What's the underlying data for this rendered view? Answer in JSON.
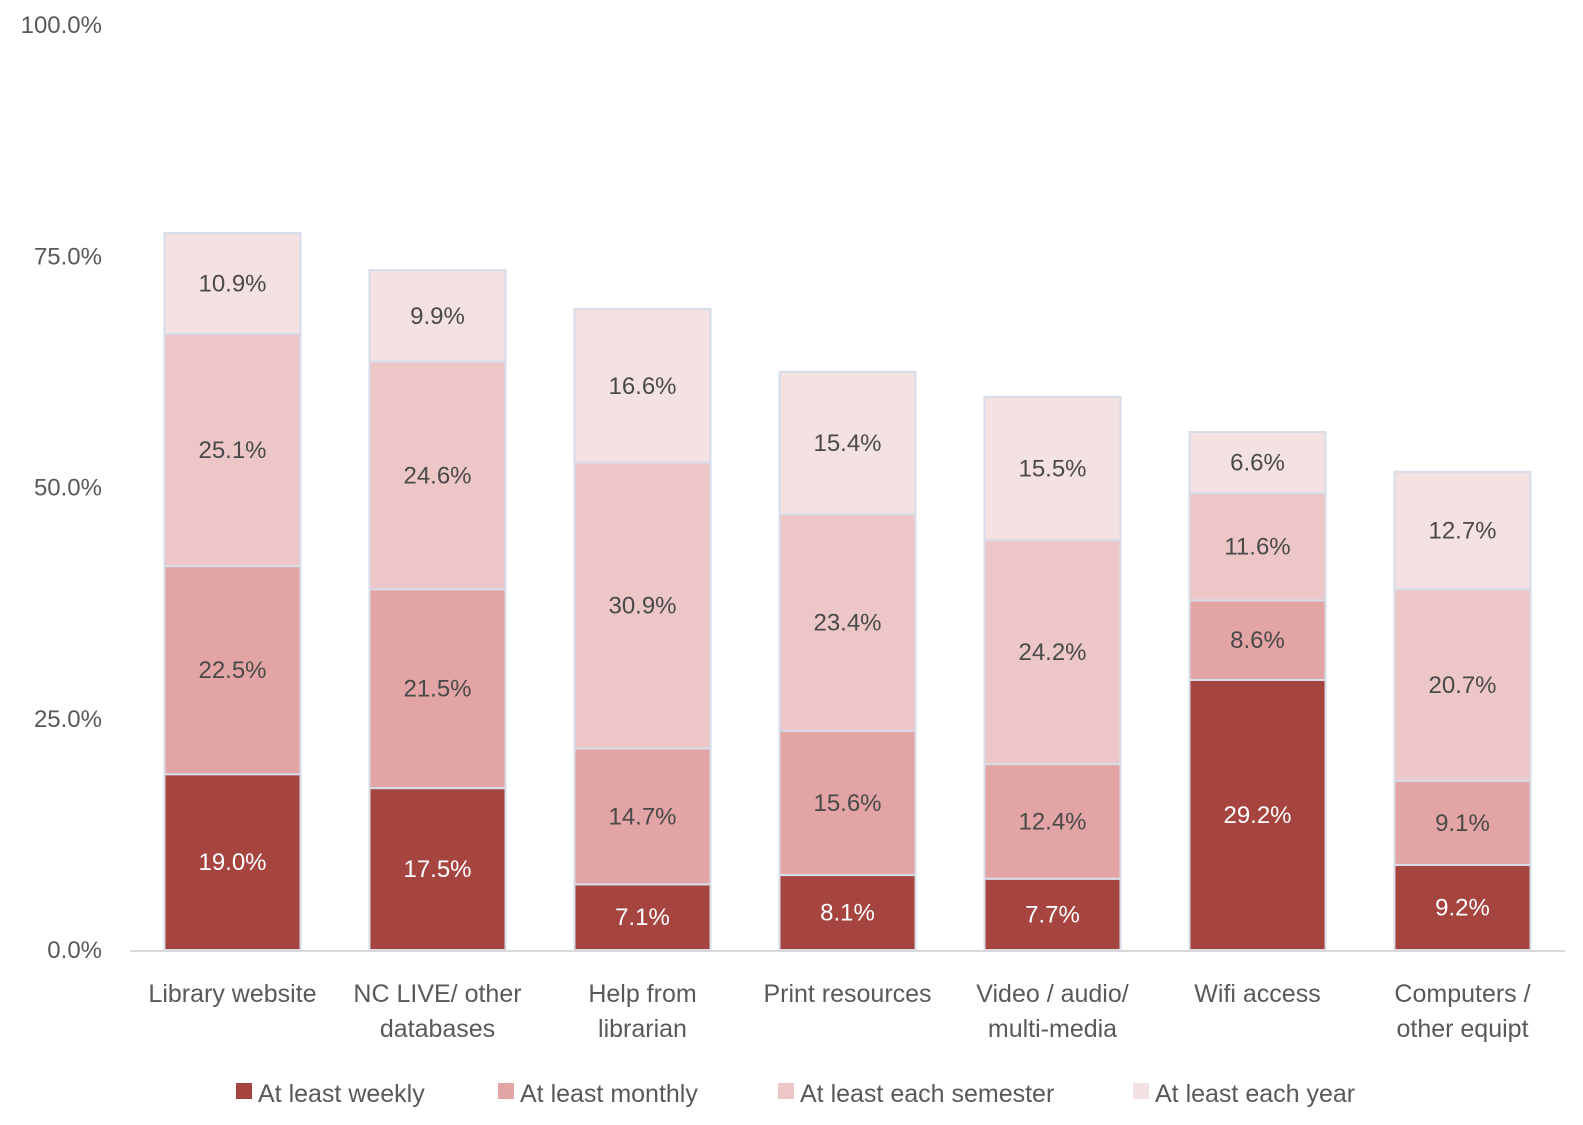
{
  "chart_data": {
    "type": "bar",
    "stacked": true,
    "categories": [
      [
        "Library website"
      ],
      [
        "NC LIVE/ other",
        "databases"
      ],
      [
        "Help from",
        "librarian"
      ],
      [
        "Print resources"
      ],
      [
        "Video / audio/",
        "multi-media"
      ],
      [
        "Wifi access"
      ],
      [
        "Computers /",
        "other equipt"
      ]
    ],
    "series": [
      {
        "name": "At least weekly",
        "color": "#a6443f",
        "label_color": "#ffffff",
        "values": [
          19.0,
          17.5,
          7.1,
          8.1,
          7.7,
          29.2,
          9.2
        ]
      },
      {
        "name": "At least monthly",
        "color": "#e2a4a4",
        "label_color": "#4a4a4a",
        "values": [
          22.5,
          21.5,
          14.7,
          15.6,
          12.4,
          8.6,
          9.1
        ]
      },
      {
        "name": "At least each semester",
        "color": "#edc6c8",
        "label_color": "#4a4a4a",
        "values": [
          25.1,
          24.6,
          30.9,
          23.4,
          24.2,
          11.6,
          20.7
        ]
      },
      {
        "name": "At least each year",
        "color": "#f4e1e1",
        "label_color": "#4a4a4a",
        "values": [
          10.9,
          9.9,
          16.6,
          15.4,
          15.5,
          6.6,
          12.7
        ]
      }
    ],
    "data_labels": [
      [
        "19.0%",
        "17.5%",
        "7.1%",
        "8.1%",
        "7.7%",
        "29.2%",
        "9.2%"
      ],
      [
        "22.5%",
        "21.5%",
        "14.7%",
        "15.6%",
        "12.4%",
        "8.6%",
        "9.1%"
      ],
      [
        "25.1%",
        "24.6%",
        "30.9%",
        "23.4%",
        "24.2%",
        "11.6%",
        "20.7%"
      ],
      [
        "10.9%",
        "9.9%",
        "16.6%",
        "15.4%",
        "15.5%",
        "6.6%",
        "12.7%"
      ]
    ],
    "y_ticks": [
      0,
      25,
      50,
      75,
      100
    ],
    "y_tick_labels": [
      "0.0%",
      "25.0%",
      "50.0%",
      "75.0%",
      "100.0%"
    ],
    "ylim": [
      0,
      100
    ],
    "grid": false,
    "legend_position": "bottom",
    "separator_color": "#d6dce8",
    "axis_color": "#d9d9d9"
  }
}
